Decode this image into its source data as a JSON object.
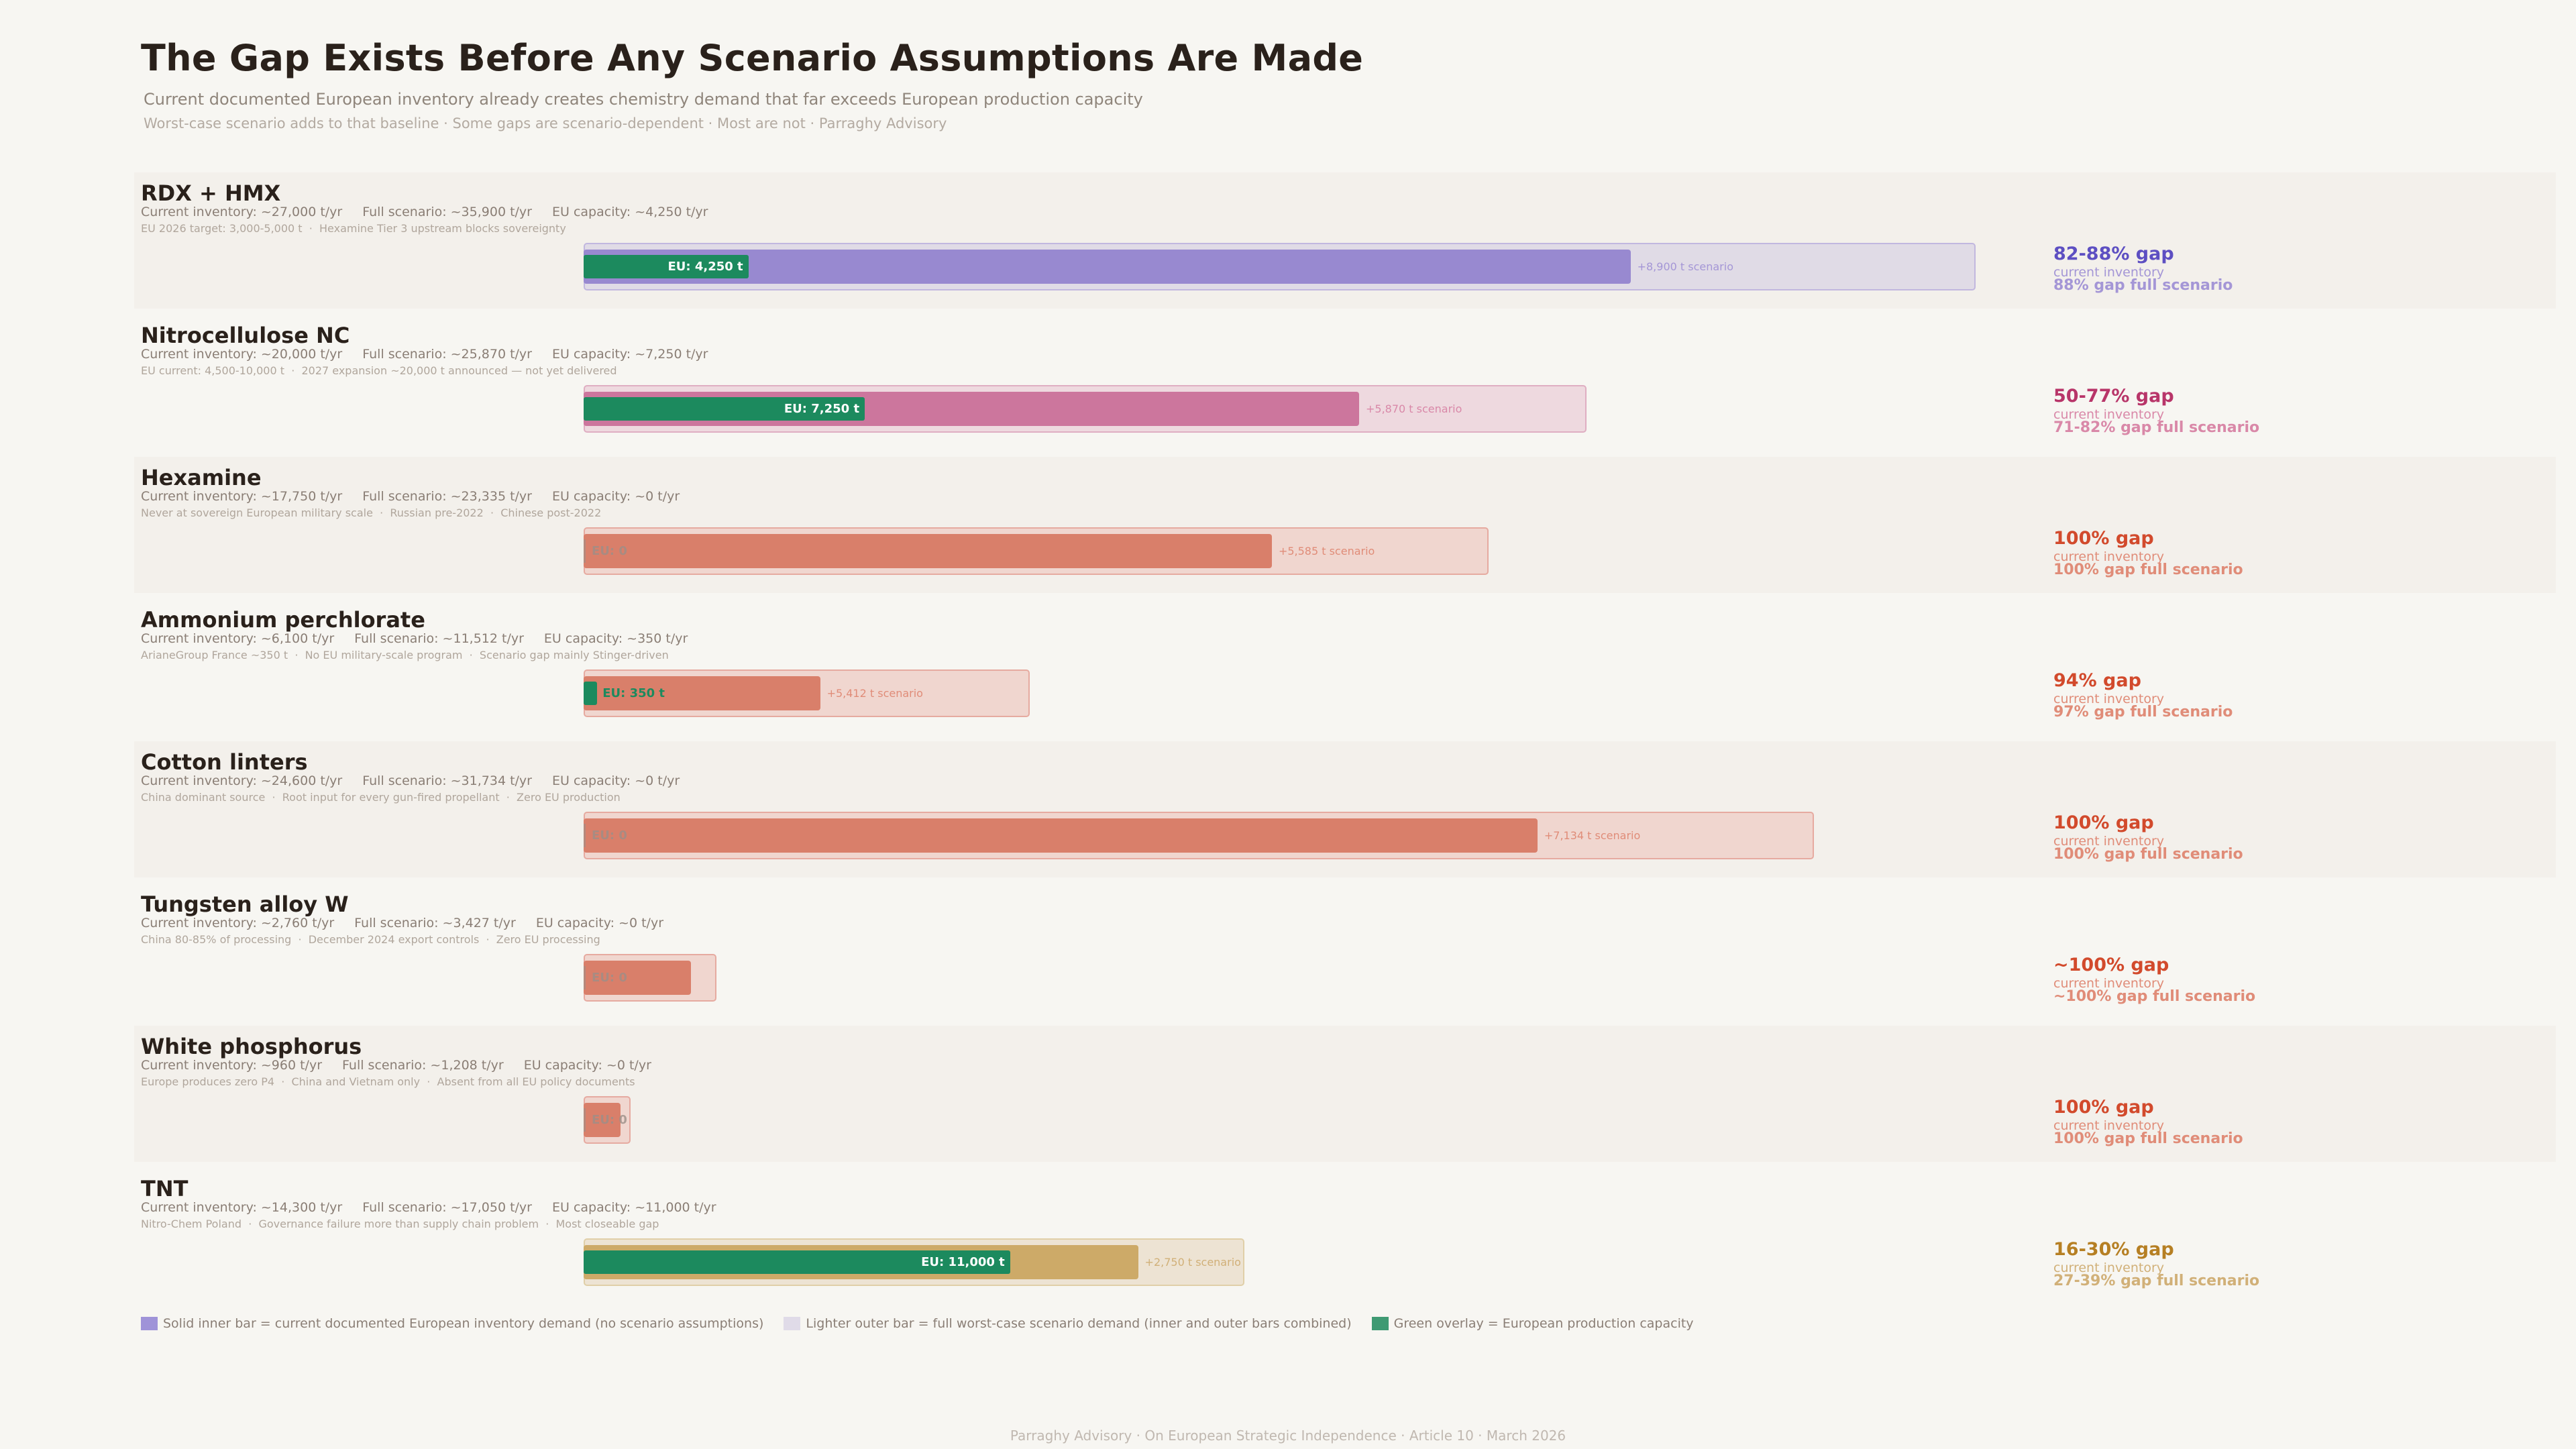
{
  "header": {
    "title": "The Gap Exists Before Any Scenario Assumptions Are Made",
    "subtitle": "Current documented European inventory already creates chemistry demand that far exceeds European production capacity",
    "subline": "Worst-case scenario adds to that baseline  ·  Some gaps are scenario-dependent  ·  Most are not  ·  Parraghy Advisory"
  },
  "colors": {
    "eu_green": "#1c8a5e",
    "purple": {
      "inner": "#9889d0",
      "outer": "#e0dbe6",
      "border": "#c1b7df",
      "label": "#5d4fc2",
      "sub": "#a496d6"
    },
    "pink": {
      "inner": "#cc769d",
      "outer": "#eed9df",
      "border": "#dfaec2",
      "label": "#b83569",
      "sub": "#d988a8"
    },
    "red": {
      "inner": "#d97f6a",
      "outer": "#f0d6cf",
      "border": "#e6aaa0",
      "label": "#d24a2c",
      "sub": "#e08c78"
    },
    "gold": {
      "inner": "#cdaa68",
      "outer": "#ede3d3",
      "border": "#e0cfa8",
      "label": "#b67f23",
      "sub": "#d1b078"
    }
  },
  "chart_data": {
    "type": "bar",
    "units": "t/yr",
    "rows": [
      {
        "name": "RDX + HMX",
        "palette": "purple",
        "current": 27000,
        "full": 35900,
        "eu": 4250,
        "stat_current": "Current inventory: ~27,000 t/yr",
        "stat_full": "Full scenario: ~35,900 t/yr",
        "stat_eu": "EU capacity: ~4,250 t/yr",
        "note": "EU 2026 target: 3,000-5,000 t  ·  Hexamine Tier 3 upstream blocks sovereignty",
        "eu_label": "EU: 4,250 t",
        "scenario_label": "+8,900 t scenario",
        "gap_current": "82-88% gap",
        "gap_current_caption": "current inventory",
        "gap_full": "88% gap  full scenario"
      },
      {
        "name": "Nitrocellulose NC",
        "palette": "pink",
        "current": 20000,
        "full": 25870,
        "eu": 7250,
        "stat_current": "Current inventory: ~20,000 t/yr",
        "stat_full": "Full scenario: ~25,870 t/yr",
        "stat_eu": "EU capacity: ~7,250 t/yr",
        "note": "EU current: 4,500-10,000 t  ·  2027 expansion ~20,000 t announced — not yet delivered",
        "eu_label": "EU: 7,250 t",
        "scenario_label": "+5,870 t scenario",
        "gap_current": "50-77% gap",
        "gap_current_caption": "current inventory",
        "gap_full": "71-82% gap  full scenario"
      },
      {
        "name": "Hexamine",
        "palette": "red",
        "current": 17750,
        "full": 23335,
        "eu": 0,
        "stat_current": "Current inventory: ~17,750 t/yr",
        "stat_full": "Full scenario: ~23,335 t/yr",
        "stat_eu": "EU capacity: ~0 t/yr",
        "note": "Never at sovereign European military scale  ·  Russian pre-2022  ·  Chinese post-2022",
        "eu_label": "EU: 0",
        "scenario_label": "+5,585 t scenario",
        "gap_current": "100% gap",
        "gap_current_caption": "current inventory",
        "gap_full": "100% gap  full scenario"
      },
      {
        "name": "Ammonium perchlorate",
        "palette": "red",
        "current": 6100,
        "full": 11512,
        "eu": 350,
        "stat_current": "Current inventory: ~6,100 t/yr",
        "stat_full": "Full scenario: ~11,512 t/yr",
        "stat_eu": "EU capacity: ~350 t/yr",
        "note": "ArianeGroup France ~350 t  ·  No EU military-scale program  ·  Scenario gap mainly Stinger-driven",
        "eu_label": "EU: 350 t",
        "scenario_label": "+5,412 t scenario",
        "gap_current": "94% gap",
        "gap_current_caption": "current inventory",
        "gap_full": "97% gap  full scenario"
      },
      {
        "name": "Cotton linters",
        "palette": "red",
        "current": 24600,
        "full": 31734,
        "eu": 0,
        "stat_current": "Current inventory: ~24,600 t/yr",
        "stat_full": "Full scenario: ~31,734 t/yr",
        "stat_eu": "EU capacity: ~0 t/yr",
        "note": "China dominant source  ·  Root input for every gun-fired propellant  ·  Zero EU production",
        "eu_label": "EU: 0",
        "scenario_label": "+7,134 t scenario",
        "gap_current": "100% gap",
        "gap_current_caption": "current inventory",
        "gap_full": "100% gap  full scenario"
      },
      {
        "name": "Tungsten alloy W",
        "palette": "red",
        "current": 2760,
        "full": 3427,
        "eu": 0,
        "stat_current": "Current inventory: ~2,760 t/yr",
        "stat_full": "Full scenario: ~3,427 t/yr",
        "stat_eu": "EU capacity: ~0 t/yr",
        "note": "China 80-85% of processing  ·  December 2024 export controls  ·  Zero EU processing",
        "eu_label": "EU: 0",
        "scenario_label": "",
        "gap_current": "~100% gap",
        "gap_current_caption": "current inventory",
        "gap_full": "~100% gap  full scenario"
      },
      {
        "name": "White phosphorus",
        "palette": "red",
        "current": 960,
        "full": 1208,
        "eu": 0,
        "stat_current": "Current inventory: ~960 t/yr",
        "stat_full": "Full scenario: ~1,208 t/yr",
        "stat_eu": "EU capacity: ~0 t/yr",
        "note": "Europe produces zero P4  ·  China and Vietnam only  ·  Absent from all EU policy documents",
        "eu_label": "EU: 0",
        "scenario_label": "",
        "gap_current": "100% gap",
        "gap_current_caption": "current inventory",
        "gap_full": "100% gap  full scenario"
      },
      {
        "name": "TNT",
        "palette": "gold",
        "current": 14300,
        "full": 17050,
        "eu": 11000,
        "stat_current": "Current inventory: ~14,300 t/yr",
        "stat_full": "Full scenario: ~17,050 t/yr",
        "stat_eu": "EU capacity: ~11,000 t/yr",
        "note": "Nitro-Chem Poland  ·  Governance failure more than supply chain problem  ·  Most closeable gap",
        "eu_label": "EU: 11,000 t",
        "scenario_label": "+2,750 t scenario",
        "gap_current": "16-30% gap",
        "gap_current_caption": "current inventory",
        "gap_full": "27-39% gap  full scenario"
      }
    ]
  },
  "legend": [
    {
      "swatch": "#9f93d8",
      "text": "Solid inner bar  =  current documented European inventory demand (no scenario assumptions)"
    },
    {
      "swatch": "#e0dbe8",
      "text": "Lighter outer bar  =  full worst-case scenario demand (inner and outer bars combined)"
    },
    {
      "swatch": "#3f9a73",
      "text": "Green overlay  =  European production capacity"
    }
  ],
  "footer": "Parraghy Advisory  ·  On European Strategic Independence  ·  Article 10  ·  March 2026"
}
